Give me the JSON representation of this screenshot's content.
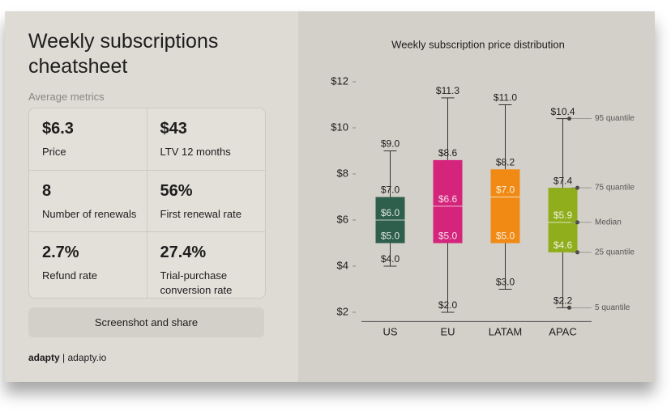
{
  "header": {
    "title": "Weekly subscriptions cheatsheet",
    "subtitle": "Average metrics"
  },
  "metrics": [
    {
      "value": "$6.3",
      "label": "Price"
    },
    {
      "value": "$43",
      "label": "LTV 12 months"
    },
    {
      "value": "8",
      "label": "Number of renewals"
    },
    {
      "value": "56%",
      "label": "First renewal rate"
    },
    {
      "value": "2.7%",
      "label": "Refund rate"
    },
    {
      "value": "27.4%",
      "label": "Trial-purchase conversion rate"
    }
  ],
  "button": "Screenshot and share",
  "footer": {
    "brand": "adapty",
    "url": "adapty.io"
  },
  "chart_data": {
    "type": "box",
    "title": "Weekly subscription price distribution",
    "stat_names": [
      "5 quantile",
      "25 quantile",
      "Median",
      "75 quantile",
      "95 quantile"
    ],
    "categories": [
      "US",
      "EU",
      "LATAM",
      "APAC"
    ],
    "series": [
      {
        "name": "US",
        "color": "#2e5e4c",
        "values": [
          4.0,
          5.0,
          6.0,
          7.0,
          9.0
        ],
        "value_labels": [
          "$4.0",
          "$5.0",
          "$6.0",
          "$7.0",
          "$9.0"
        ]
      },
      {
        "name": "EU",
        "color": "#d4247c",
        "values": [
          2.0,
          5.0,
          6.6,
          8.6,
          11.3
        ],
        "value_labels": [
          "$2.0",
          "$5.0",
          "$6.6",
          "$8.6",
          "$11.3"
        ]
      },
      {
        "name": "LATAM",
        "color": "#f08a14",
        "values": [
          3.0,
          5.0,
          7.0,
          8.2,
          11.0
        ],
        "value_labels": [
          "$3.0",
          "$5.0",
          "$7.0",
          "$8.2",
          "$11.0"
        ]
      },
      {
        "name": "APAC",
        "color": "#90ad1c",
        "values": [
          2.2,
          4.6,
          5.9,
          7.4,
          10.4
        ],
        "value_labels": [
          "$2.2",
          "$4.6",
          "$5.9",
          "$7.4",
          "$10.4"
        ]
      }
    ],
    "ylim": [
      1.6,
      12.2
    ],
    "yticks": [
      {
        "value": 2,
        "label": "$2"
      },
      {
        "value": 4,
        "label": "$4"
      },
      {
        "value": 6,
        "label": "$6"
      },
      {
        "value": 8,
        "label": "$8"
      },
      {
        "value": 10,
        "label": "$10"
      },
      {
        "value": 12,
        "label": "$12"
      }
    ]
  }
}
